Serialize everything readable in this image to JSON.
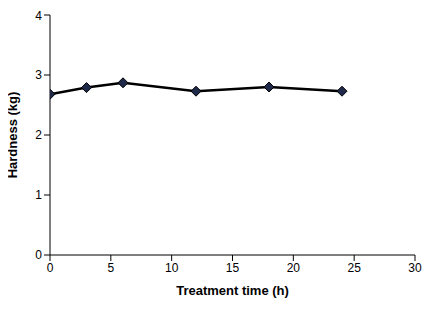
{
  "chart_data": {
    "type": "line",
    "x_label": "Treatment time (h)",
    "y_label": "Hardness (kg)",
    "x": [
      0,
      3,
      6,
      12,
      18,
      24
    ],
    "series": [
      {
        "name": "Hardness",
        "color": "#000000",
        "marker": "diamond",
        "values": [
          2.68,
          2.79,
          2.87,
          2.73,
          2.8,
          2.73
        ]
      }
    ],
    "xlim": [
      0,
      30
    ],
    "xticks": [
      0,
      5,
      10,
      15,
      20,
      25,
      30
    ],
    "ylim": [
      0,
      4
    ],
    "yticks": [
      0,
      1,
      2,
      3,
      4
    ],
    "grid": false
  }
}
